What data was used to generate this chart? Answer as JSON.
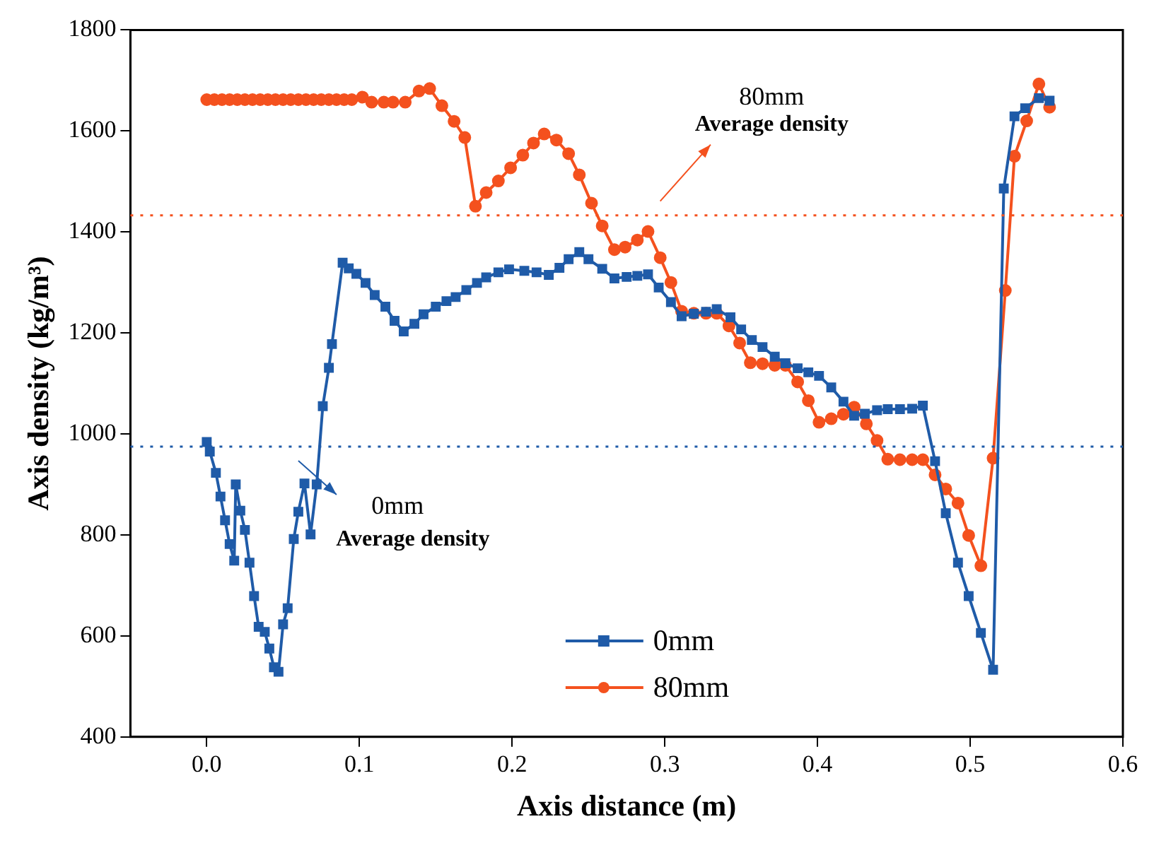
{
  "chart_data": {
    "type": "line",
    "xlabel": "Axis distance (m)",
    "ylabel": "Axis density (kg/m³)",
    "xlim": [
      -0.05,
      0.6
    ],
    "xticks": [
      {
        "value": 0,
        "label": "0.0"
      },
      0.1,
      0.2,
      0.3,
      0.4,
      0.5,
      0.6
    ],
    "ylim": [
      400,
      1800
    ],
    "yticks": [
      400,
      600,
      800,
      1000,
      1200,
      1400,
      1600,
      1800
    ],
    "grid": false,
    "legend": "bottom",
    "line_style": "solid",
    "series": [
      {
        "name": "0mm",
        "color": "#1f5ba8",
        "marker": "square",
        "x": [
          0.0,
          0.002,
          0.006,
          0.009,
          0.012,
          0.015,
          0.018,
          0.019,
          0.022,
          0.025,
          0.028,
          0.031,
          0.034,
          0.038,
          0.041,
          0.044,
          0.047,
          0.05,
          0.053,
          0.057,
          0.06,
          0.064,
          0.068,
          0.072,
          0.076,
          0.08,
          0.082,
          0.089,
          0.093,
          0.098,
          0.104,
          0.11,
          0.117,
          0.123,
          0.129,
          0.136,
          0.142,
          0.15,
          0.157,
          0.163,
          0.17,
          0.177,
          0.183,
          0.191,
          0.198,
          0.208,
          0.216,
          0.224,
          0.231,
          0.237,
          0.244,
          0.25,
          0.259,
          0.267,
          0.275,
          0.282,
          0.289,
          0.296,
          0.304,
          0.311,
          0.319,
          0.327,
          0.334,
          0.343,
          0.35,
          0.357,
          0.364,
          0.372,
          0.379,
          0.387,
          0.394,
          0.401,
          0.409,
          0.417,
          0.424,
          0.431,
          0.439,
          0.446,
          0.454,
          0.462,
          0.469,
          0.477,
          0.484,
          0.492,
          0.499,
          0.507,
          0.515,
          0.522,
          0.529,
          0.536,
          0.545,
          0.552
        ],
        "values": [
          984,
          965,
          923,
          876,
          829,
          782,
          749,
          900,
          848,
          810,
          745,
          679,
          618,
          608,
          575,
          538,
          529,
          623,
          655,
          792,
          846,
          902,
          801,
          900,
          1055,
          1131,
          1178,
          1339,
          1328,
          1317,
          1299,
          1275,
          1252,
          1224,
          1203,
          1218,
          1237,
          1252,
          1263,
          1271,
          1285,
          1299,
          1310,
          1320,
          1326,
          1323,
          1320,
          1315,
          1329,
          1346,
          1360,
          1346,
          1327,
          1308,
          1311,
          1313,
          1316,
          1290,
          1261,
          1233,
          1238,
          1242,
          1247,
          1231,
          1207,
          1186,
          1172,
          1153,
          1140,
          1130,
          1122,
          1115,
          1092,
          1064,
          1036,
          1040,
          1047,
          1049,
          1049,
          1050,
          1056,
          946,
          843,
          745,
          679,
          606,
          533,
          1486,
          1629,
          1645,
          1665,
          1660
        ]
      },
      {
        "name": "80mm",
        "color": "#f4511e",
        "marker": "circle",
        "x": [
          0.0,
          0.005,
          0.01,
          0.015,
          0.02,
          0.025,
          0.03,
          0.035,
          0.04,
          0.045,
          0.05,
          0.055,
          0.06,
          0.065,
          0.07,
          0.075,
          0.08,
          0.085,
          0.09,
          0.095,
          0.102,
          0.108,
          0.116,
          0.122,
          0.13,
          0.139,
          0.146,
          0.154,
          0.162,
          0.169,
          0.176,
          0.183,
          0.191,
          0.199,
          0.207,
          0.214,
          0.221,
          0.229,
          0.237,
          0.244,
          0.252,
          0.259,
          0.267,
          0.274,
          0.282,
          0.289,
          0.297,
          0.304,
          0.311,
          0.319,
          0.327,
          0.334,
          0.342,
          0.349,
          0.356,
          0.364,
          0.372,
          0.379,
          0.387,
          0.394,
          0.401,
          0.409,
          0.417,
          0.424,
          0.432,
          0.439,
          0.446,
          0.454,
          0.462,
          0.469,
          0.477,
          0.484,
          0.492,
          0.499,
          0.507,
          0.515,
          0.523,
          0.529,
          0.537,
          0.545,
          0.552
        ],
        "values": [
          1662,
          1662,
          1662,
          1662,
          1662,
          1662,
          1662,
          1662,
          1662,
          1662,
          1662,
          1662,
          1662,
          1662,
          1662,
          1662,
          1662,
          1662,
          1662,
          1662,
          1667,
          1657,
          1657,
          1657,
          1657,
          1679,
          1684,
          1650,
          1619,
          1587,
          1451,
          1478,
          1501,
          1527,
          1552,
          1576,
          1594,
          1582,
          1555,
          1513,
          1457,
          1412,
          1365,
          1370,
          1384,
          1401,
          1349,
          1300,
          1243,
          1239,
          1239,
          1239,
          1214,
          1180,
          1141,
          1139,
          1136,
          1136,
          1103,
          1066,
          1023,
          1030,
          1039,
          1053,
          1020,
          987,
          950,
          949,
          949,
          949,
          919,
          891,
          863,
          799,
          739,
          952,
          1284,
          1550,
          1620,
          1693,
          1647
        ]
      }
    ],
    "ref_lines": [
      {
        "axis": "y",
        "value": 1433,
        "color": "#f4511e",
        "line_style": "dotted"
      },
      {
        "axis": "y",
        "value": 975,
        "color": "#1f5ba8",
        "line_style": "dotted"
      }
    ],
    "annotations": [
      "80mm",
      "Average density",
      "0mm",
      "Average density"
    ]
  }
}
